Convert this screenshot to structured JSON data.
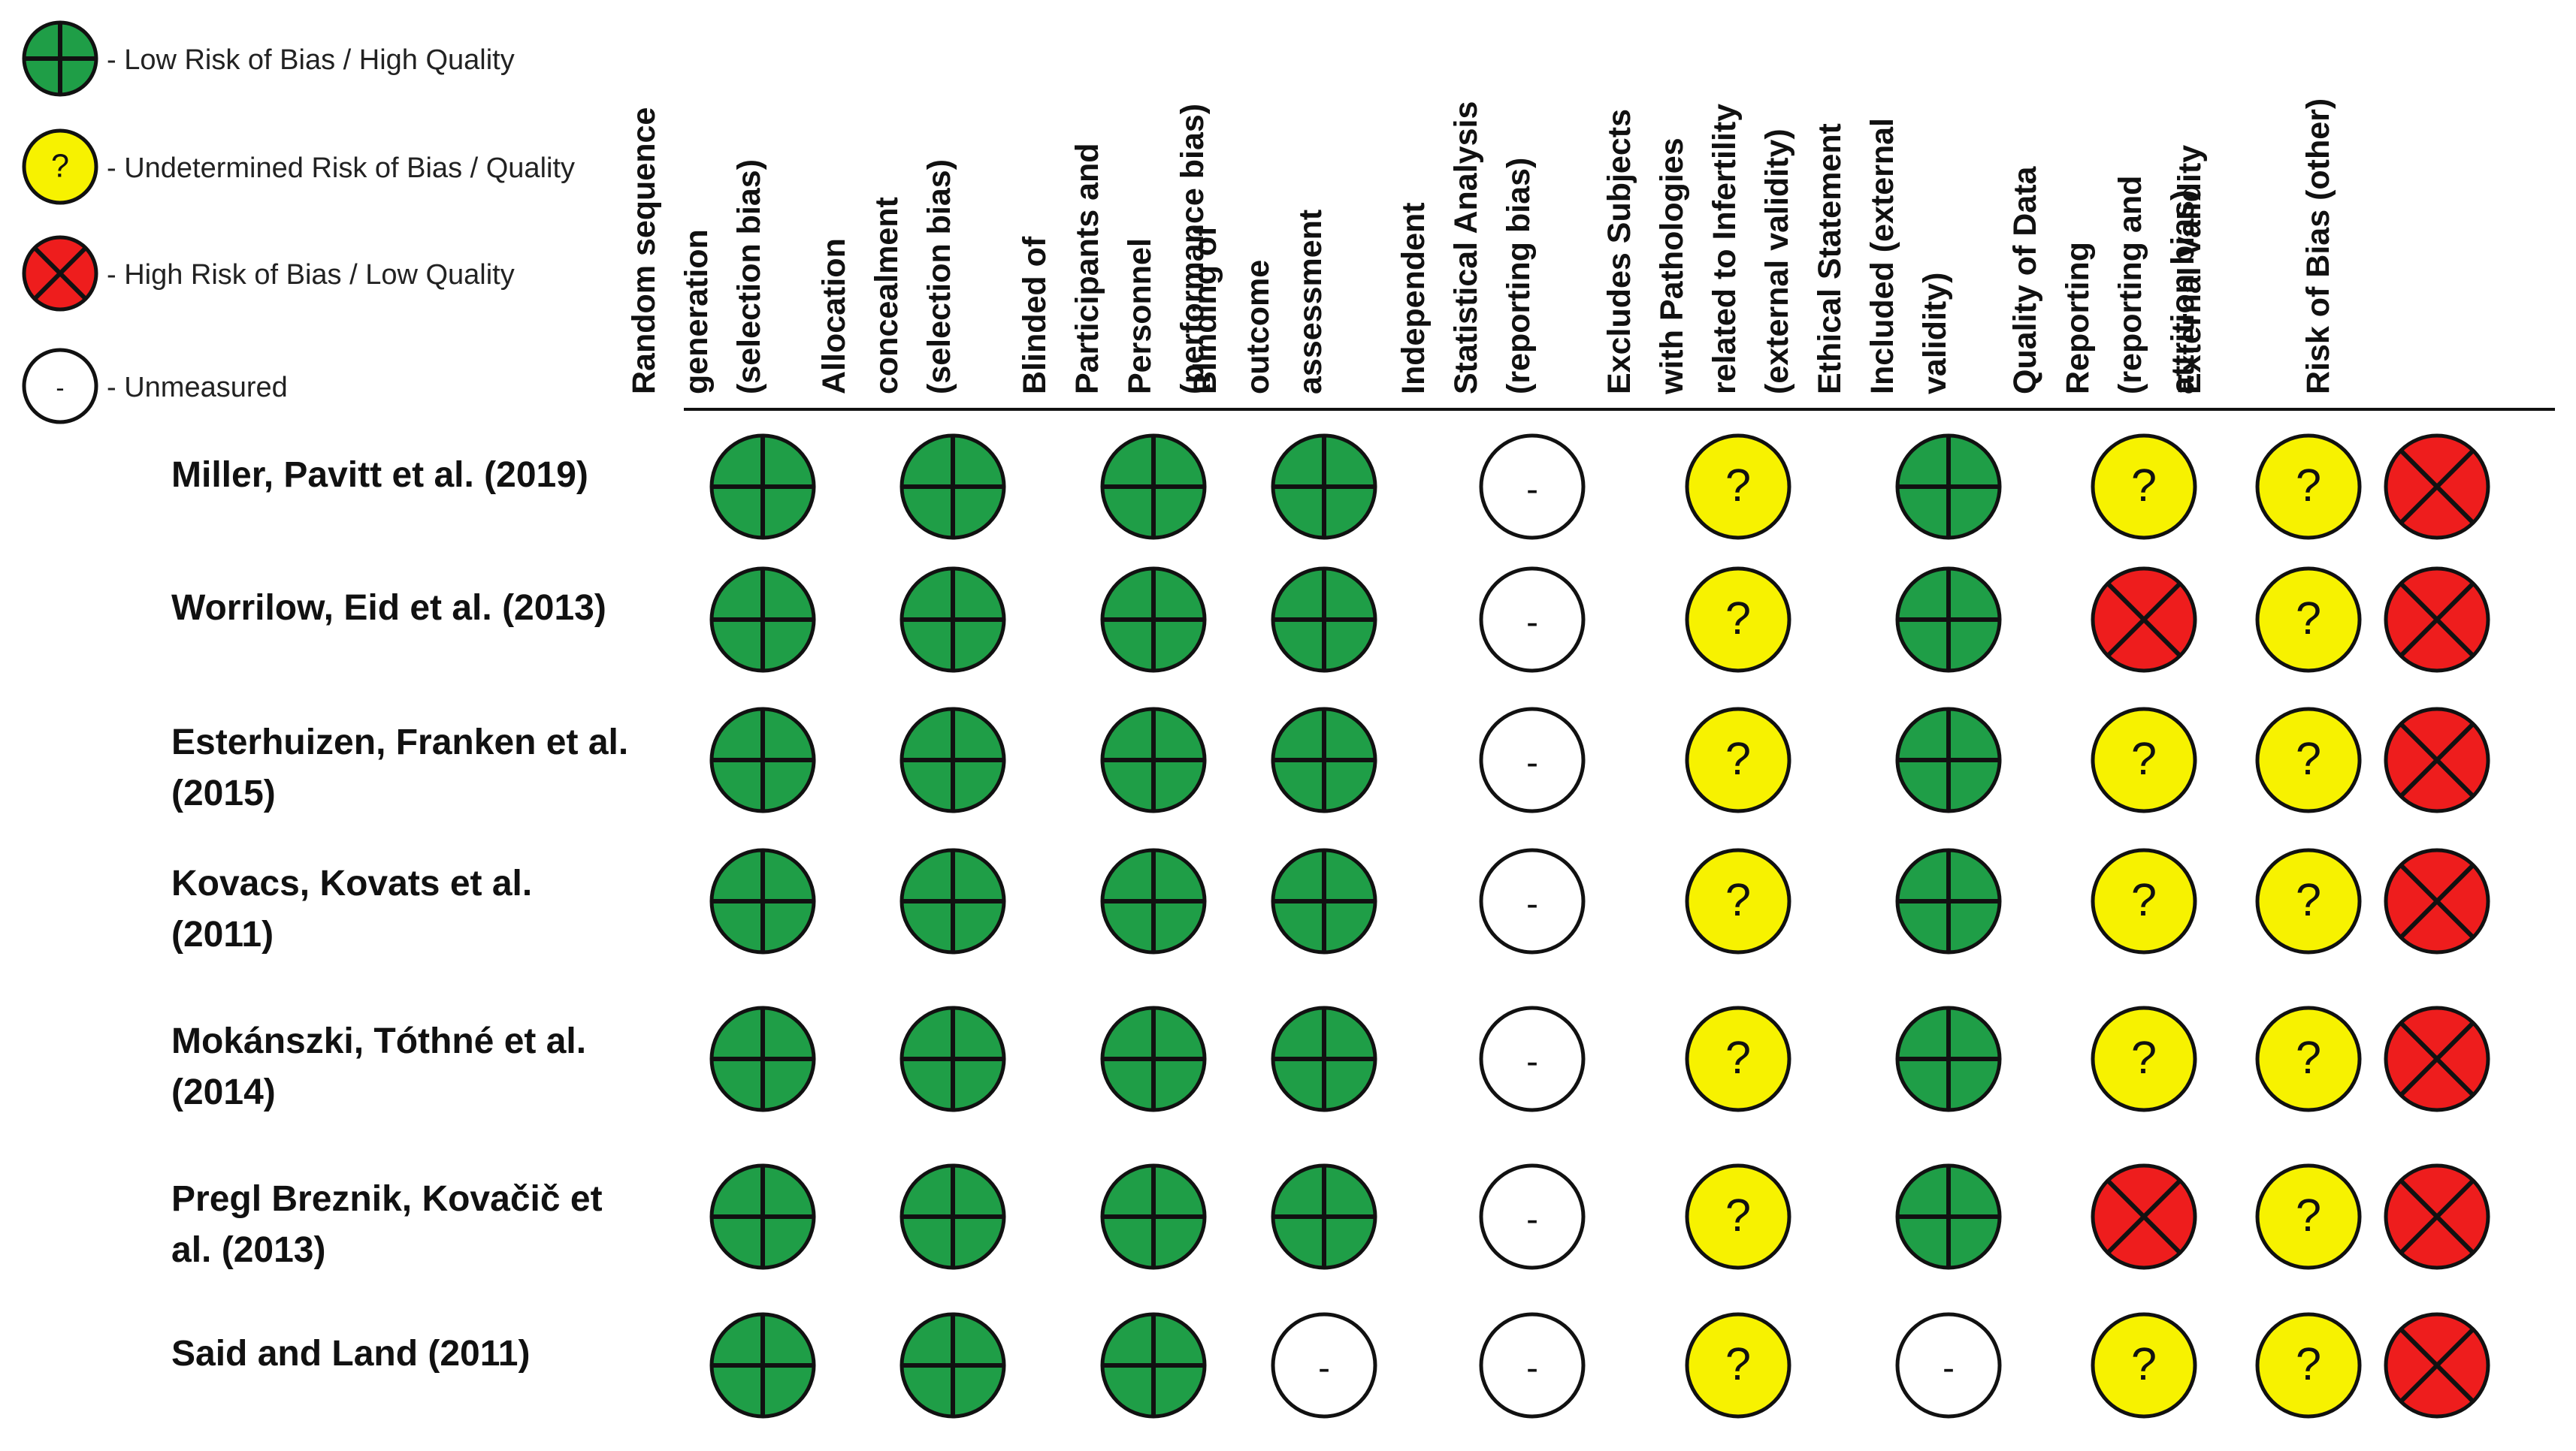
{
  "legend": [
    {
      "symbol": "low",
      "label": "- Low Risk of Bias / High Quality"
    },
    {
      "symbol": "unclear",
      "label": "- Undetermined Risk of Bias / Quality"
    },
    {
      "symbol": "high",
      "label": "- High Risk of Bias / Low Quality"
    },
    {
      "symbol": "none",
      "label": "- Unmeasured"
    }
  ],
  "columns": [
    {
      "lines": [
        "Random sequence",
        "generation",
        "(selection bias)"
      ]
    },
    {
      "lines": [
        "Allocation",
        "concealment",
        "(selection bias)"
      ]
    },
    {
      "lines": [
        "Blinded of",
        "Participants and",
        "Personnel",
        "(performance bias)"
      ]
    },
    {
      "lines": [
        "Blinding of",
        "outcome",
        "assessment"
      ]
    },
    {
      "lines": [
        "Independent",
        "Statistical Analysis",
        "(reporting bias)"
      ]
    },
    {
      "lines": [
        "Excludes Subjects",
        "with Pathologies",
        "related to Infertility",
        "(external validity)"
      ]
    },
    {
      "lines": [
        "Ethical Statement",
        "Included (external",
        "validity)"
      ]
    },
    {
      "lines": [
        "Quality of Data",
        "Reporting",
        "(reporting and",
        "attrition bias)"
      ]
    },
    {
      "lines": [
        "External Validity"
      ]
    },
    {
      "lines": [
        "Risk of Bias (other)"
      ]
    }
  ],
  "studies": [
    {
      "lines": [
        "Miller, Pavitt et al. (2019)"
      ],
      "ratings": [
        "low",
        "low",
        "low",
        "low",
        "none",
        "unclear",
        "low",
        "unclear",
        "unclear",
        "high"
      ]
    },
    {
      "lines": [
        "Worrilow, Eid et al. (2013)"
      ],
      "ratings": [
        "low",
        "low",
        "low",
        "low",
        "none",
        "unclear",
        "low",
        "high",
        "unclear",
        "high"
      ]
    },
    {
      "lines": [
        "Esterhuizen, Franken et al.",
        "(2015)"
      ],
      "ratings": [
        "low",
        "low",
        "low",
        "low",
        "none",
        "unclear",
        "low",
        "unclear",
        "unclear",
        "high"
      ]
    },
    {
      "lines": [
        "Kovacs, Kovats et al.",
        "(2011)"
      ],
      "ratings": [
        "low",
        "low",
        "low",
        "low",
        "none",
        "unclear",
        "low",
        "unclear",
        "unclear",
        "high"
      ]
    },
    {
      "lines": [
        "Mokánszki, Tóthné et al.",
        "(2014)"
      ],
      "ratings": [
        "low",
        "low",
        "low",
        "low",
        "none",
        "unclear",
        "low",
        "unclear",
        "unclear",
        "high"
      ]
    },
    {
      "lines": [
        "Pregl Breznik, Kovačič et",
        "al. (2013)"
      ],
      "ratings": [
        "low",
        "low",
        "low",
        "low",
        "none",
        "unclear",
        "low",
        "high",
        "unclear",
        "high"
      ]
    },
    {
      "lines": [
        "Said and Land (2011)"
      ],
      "ratings": [
        "low",
        "low",
        "low",
        "none",
        "none",
        "unclear",
        "none",
        "unclear",
        "unclear",
        "high"
      ]
    }
  ],
  "glyphs": {
    "unclear": "?",
    "none": "-"
  },
  "colors": {
    "low": "#1f9e47",
    "unclear": "#f7f200",
    "high": "#ee1d1d",
    "none": "#ffffff",
    "outline": "#111111"
  }
}
